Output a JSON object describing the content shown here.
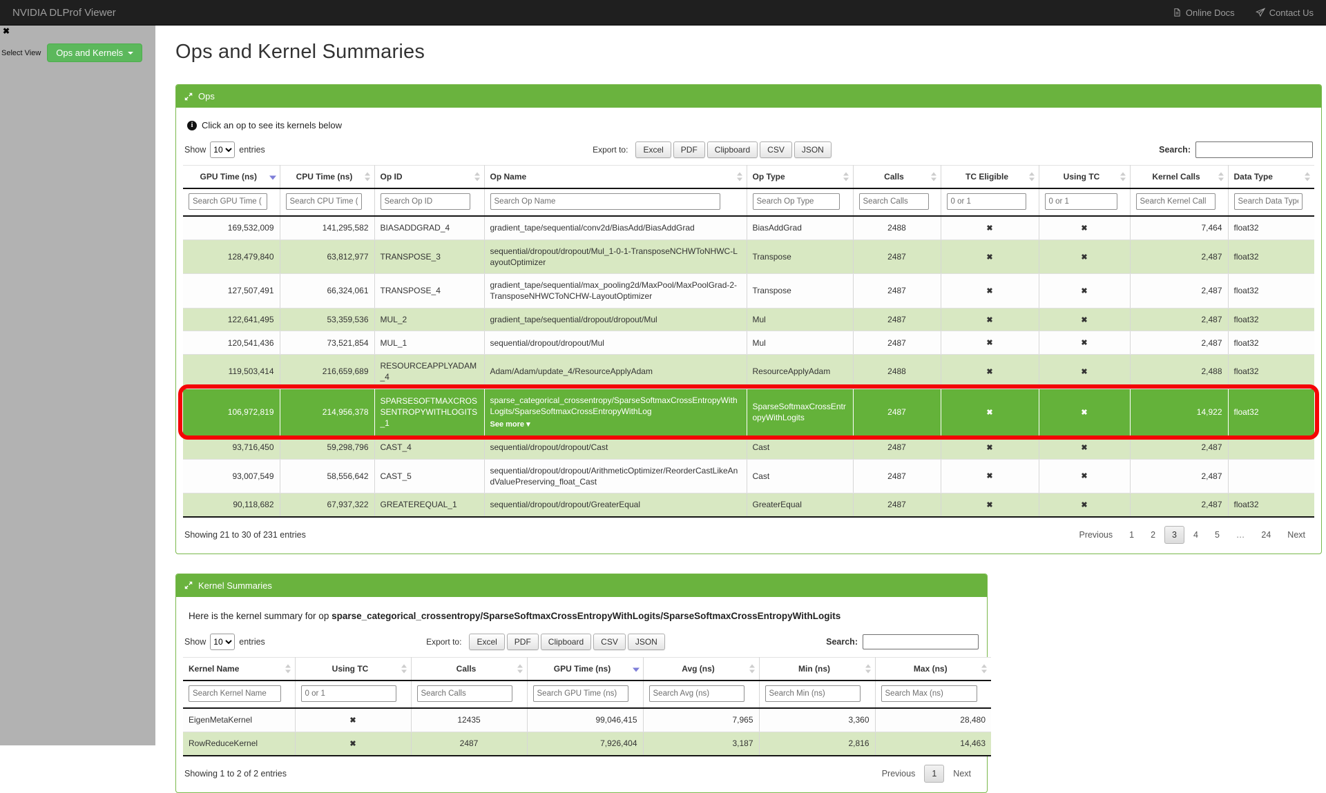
{
  "navbar": {
    "brand": "NVIDIA DLProf Viewer",
    "links": [
      {
        "label": "Online Docs",
        "icon": "document-icon"
      },
      {
        "label": "Contact Us",
        "icon": "paper-plane-icon"
      }
    ]
  },
  "sidebar": {
    "close_glyph": "✖",
    "select_view_label": "Select View",
    "view_dropdown_label": "Ops and Kernels"
  },
  "page_title": "Ops and Kernel Summaries",
  "x_glyph": "✖",
  "colors": {
    "navbar_bg": "#1f1f1f",
    "navbar_text": "#9d9d9d",
    "sidebar_bg": "#b2b2b2",
    "button_green": "#5cb85c",
    "panel_green": "#6ab33e",
    "selected_row_green": "#64b23a",
    "zebra_green": "#d8e8c2",
    "selection_ring_red": "#f40505"
  },
  "ops": {
    "title": "Ops",
    "info": "Click an op to see its kernels below",
    "show_label": "Show",
    "page_length": "10",
    "entries_label": "entries",
    "export_label": "Export to:",
    "export_buttons": [
      "Excel",
      "PDF",
      "Clipboard",
      "CSV",
      "JSON"
    ],
    "search_label": "Search:",
    "search_value": "",
    "columns": [
      {
        "label": "GPU Time (ns)",
        "placeholder": "Search GPU Time (",
        "align": "right",
        "header_align": "center",
        "sort": "desc"
      },
      {
        "label": "CPU Time (ns)",
        "placeholder": "Search CPU Time (",
        "align": "right",
        "header_align": "center",
        "sort": "both"
      },
      {
        "label": "Op ID",
        "placeholder": "Search Op ID",
        "align": "left",
        "header_align": "left",
        "sort": "both"
      },
      {
        "label": "Op Name",
        "placeholder": "Search Op Name",
        "align": "left",
        "header_align": "left",
        "sort": "both"
      },
      {
        "label": "Op Type",
        "placeholder": "Search Op Type",
        "align": "left",
        "header_align": "left",
        "sort": "both"
      },
      {
        "label": "Calls",
        "placeholder": "Search Calls",
        "align": "center",
        "header_align": "center",
        "sort": "both"
      },
      {
        "label": "TC Eligible",
        "placeholder": "0 or 1",
        "align": "center",
        "header_align": "center",
        "sort": "both"
      },
      {
        "label": "Using TC",
        "placeholder": "0 or 1",
        "align": "center",
        "header_align": "center",
        "sort": "both"
      },
      {
        "label": "Kernel Calls",
        "placeholder": "Search Kernel Call",
        "align": "right",
        "header_align": "center",
        "sort": "both"
      },
      {
        "label": "Data Type",
        "placeholder": "Search Data Type",
        "align": "left",
        "header_align": "left",
        "sort": "both"
      }
    ],
    "rows": [
      {
        "cells": [
          "169,532,009",
          "141,295,582",
          "BIASADDGRAD_4",
          "gradient_tape/sequential/conv2d/BiasAdd/BiasAddGrad",
          "BiasAddGrad",
          "2488",
          "✖",
          "✖",
          "7,464",
          "float32"
        ]
      },
      {
        "cells": [
          "128,479,840",
          "63,812,977",
          "TRANSPOSE_3",
          "sequential/dropout/dropout/Mul_1-0-1-TransposeNCHWToNHWC-LayoutOptimizer",
          "Transpose",
          "2487",
          "✖",
          "✖",
          "2,487",
          "float32"
        ]
      },
      {
        "cells": [
          "127,507,491",
          "66,324,061",
          "TRANSPOSE_4",
          "gradient_tape/sequential/max_pooling2d/MaxPool/MaxPoolGrad-2-TransposeNHWCToNCHW-LayoutOptimizer",
          "Transpose",
          "2487",
          "✖",
          "✖",
          "2,487",
          "float32"
        ]
      },
      {
        "cells": [
          "122,641,495",
          "53,359,536",
          "MUL_2",
          "gradient_tape/sequential/dropout/dropout/Mul",
          "Mul",
          "2487",
          "✖",
          "✖",
          "2,487",
          "float32"
        ]
      },
      {
        "cells": [
          "120,541,436",
          "73,521,854",
          "MUL_1",
          "sequential/dropout/dropout/Mul",
          "Mul",
          "2487",
          "✖",
          "✖",
          "2,487",
          "float32"
        ]
      },
      {
        "cells": [
          "119,503,414",
          "216,659,689",
          "RESOURCEAPPLYADAM_4",
          "Adam/Adam/update_4/ResourceApplyAdam",
          "ResourceApplyAdam",
          "2488",
          "✖",
          "✖",
          "2,488",
          "float32"
        ]
      },
      {
        "cells": [
          "106,972,819",
          "214,956,378",
          "SPARSESOFTMAXCROSSENTROPYWITHLOGITS_1",
          "sparse_categorical_crossentropy/SparseSoftmaxCrossEntropyWithLogits/SparseSoftmaxCrossEntropyWithLog",
          "SparseSoftmaxCrossEntropyWithLogits",
          "2487",
          "✖",
          "✖",
          "14,922",
          "float32"
        ],
        "selected": true,
        "see_more": "See more",
        "see_more_col": 3,
        "see_more_chevron": "▾"
      },
      {
        "cells": [
          "93,716,450",
          "59,298,796",
          "CAST_4",
          "sequential/dropout/dropout/Cast",
          "Cast",
          "2487",
          "✖",
          "✖",
          "2,487",
          ""
        ]
      },
      {
        "cells": [
          "93,007,549",
          "58,556,642",
          "CAST_5",
          "sequential/dropout/dropout/ArithmeticOptimizer/ReorderCastLikeAndValuePreserving_float_Cast",
          "Cast",
          "2487",
          "✖",
          "✖",
          "2,487",
          ""
        ]
      },
      {
        "cells": [
          "90,118,682",
          "67,937,322",
          "GREATEREQUAL_1",
          "sequential/dropout/dropout/GreaterEqual",
          "GreaterEqual",
          "2487",
          "✖",
          "✖",
          "2,487",
          "float32"
        ]
      }
    ],
    "footer_info": "Showing 21 to 30 of 231 entries",
    "pagination": {
      "prev": "Previous",
      "pages": [
        "1",
        "2",
        "3",
        "4",
        "5",
        "…",
        "24"
      ],
      "active": "3",
      "next": "Next"
    }
  },
  "kernels": {
    "title": "Kernel Summaries",
    "summary_prefix": "Here is the kernel summary for op",
    "summary_op": "sparse_categorical_crossentropy/SparseSoftmaxCrossEntropyWithLogits/SparseSoftmaxCrossEntropyWithLogits",
    "show_label": "Show",
    "page_length": "10",
    "entries_label": "entries",
    "export_label": "Export to:",
    "export_buttons": [
      "Excel",
      "PDF",
      "Clipboard",
      "CSV",
      "JSON"
    ],
    "search_label": "Search:",
    "search_value": "",
    "columns": [
      {
        "label": "Kernel Name",
        "placeholder": "Search Kernel Name",
        "align": "left",
        "header_align": "left",
        "sort": "both"
      },
      {
        "label": "Using TC",
        "placeholder": "0 or 1",
        "align": "center",
        "header_align": "center",
        "sort": "both"
      },
      {
        "label": "Calls",
        "placeholder": "Search Calls",
        "align": "center",
        "header_align": "center",
        "sort": "both"
      },
      {
        "label": "GPU Time (ns)",
        "placeholder": "Search GPU Time (ns)",
        "align": "right",
        "header_align": "center",
        "sort": "desc"
      },
      {
        "label": "Avg (ns)",
        "placeholder": "Search Avg (ns)",
        "align": "right",
        "header_align": "center",
        "sort": "both"
      },
      {
        "label": "Min (ns)",
        "placeholder": "Search Min (ns)",
        "align": "right",
        "header_align": "center",
        "sort": "both"
      },
      {
        "label": "Max (ns)",
        "placeholder": "Search Max (ns)",
        "align": "right",
        "header_align": "center",
        "sort": "both"
      }
    ],
    "rows": [
      {
        "cells": [
          "EigenMetaKernel",
          "✖",
          "12435",
          "99,046,415",
          "7,965",
          "3,360",
          "28,480"
        ]
      },
      {
        "cells": [
          "RowReduceKernel",
          "✖",
          "2487",
          "7,926,404",
          "3,187",
          "2,816",
          "14,463"
        ]
      }
    ],
    "footer_info": "Showing 1 to 2 of 2 entries",
    "pagination": {
      "prev": "Previous",
      "pages": [
        "1"
      ],
      "active": "1",
      "next": "Next"
    }
  }
}
